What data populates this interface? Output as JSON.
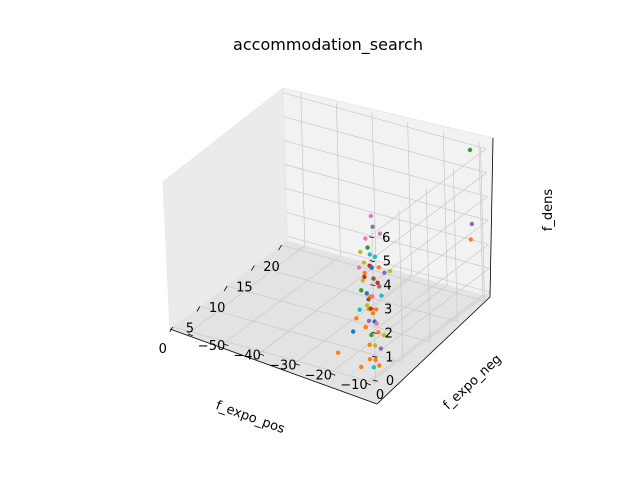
{
  "chart_data": {
    "type": "scatter",
    "title": "accommodation_search",
    "xlabel": "f_expo_pos",
    "ylabel": "f_expo_neg",
    "zlabel": "f_dens",
    "xlim": [
      -0.5,
      21
    ],
    "ylim": [
      -55,
      2
    ],
    "zlim": [
      -0.2,
      6.2
    ],
    "xticks": [
      0,
      5,
      10,
      15,
      20
    ],
    "yticks": [
      -50,
      -40,
      -30,
      -20,
      -10,
      0
    ],
    "zticks": [
      0,
      1,
      2,
      3,
      4,
      5,
      6
    ],
    "grid": true,
    "palette": [
      "#1f77b4",
      "#ff7f0e",
      "#2ca02c",
      "#d62728",
      "#9467bd",
      "#8c564b",
      "#e377c2",
      "#7f7f7f",
      "#bcbd22",
      "#17becf"
    ],
    "points": [
      {
        "x": 20,
        "y": -1,
        "z": 6,
        "color": "#2ca02c"
      },
      {
        "x": 21,
        "y": -3,
        "z": 2,
        "color": "#ff7f0e"
      },
      {
        "x": 20,
        "y": -1,
        "z": 2.9,
        "color": "#9467bd"
      },
      {
        "x": 1,
        "y": -10,
        "z": 0.4,
        "color": "#ff7f0e"
      },
      {
        "x": 0,
        "y": -2,
        "z": 0.3,
        "color": "#ff7f0e"
      },
      {
        "x": 5,
        "y": -6,
        "z": 5.6,
        "color": "#e377c2"
      },
      {
        "x": 0,
        "y": -2,
        "z": 2.7,
        "color": "#17becf"
      },
      {
        "x": 0,
        "y": -3,
        "z": 2.3,
        "color": "#ff7f0e"
      },
      {
        "x": 0,
        "y": -4,
        "z": 1.7,
        "color": "#1f77b4"
      },
      {
        "x": 1,
        "y": -2,
        "z": 4.5,
        "color": "#bcbd22"
      },
      {
        "x": 2,
        "y": -3,
        "z": 5.3,
        "color": "#e377c2"
      },
      {
        "x": 4,
        "y": -4,
        "z": 5.4,
        "color": "#7f7f7f"
      },
      {
        "x": 4,
        "y": -2,
        "z": 5.2,
        "color": "#e377c2"
      },
      {
        "x": 2,
        "y": -2,
        "z": 4.2,
        "color": "#d62728"
      },
      {
        "x": 3,
        "y": -3,
        "z": 3.9,
        "color": "#1f77b4"
      },
      {
        "x": 2,
        "y": -4,
        "z": 3.5,
        "color": "#bcbd22"
      },
      {
        "x": 3,
        "y": -5,
        "z": 3.6,
        "color": "#ff7f0e"
      },
      {
        "x": 2,
        "y": -3,
        "z": 3.0,
        "color": "#1f77b4"
      },
      {
        "x": 3,
        "y": -3,
        "z": 2.7,
        "color": "#e377c2"
      },
      {
        "x": 2,
        "y": -2,
        "z": 2.9,
        "color": "#ff7f0e"
      },
      {
        "x": 1,
        "y": -3,
        "z": 3.3,
        "color": "#2ca02c"
      },
      {
        "x": 2,
        "y": -1,
        "z": 3.7,
        "color": "#8c564b"
      },
      {
        "x": 3,
        "y": -2,
        "z": 4.4,
        "color": "#17becf"
      },
      {
        "x": 4,
        "y": -1,
        "z": 3.6,
        "color": "#9467bd"
      },
      {
        "x": 5,
        "y": -1,
        "z": 3.5,
        "color": "#bcbd22"
      },
      {
        "x": 1,
        "y": -1,
        "z": 2.6,
        "color": "#bcbd22"
      },
      {
        "x": 2,
        "y": -2,
        "z": 2.4,
        "color": "#d62728"
      },
      {
        "x": 3,
        "y": -2,
        "z": 2.2,
        "color": "#ff7f0e"
      },
      {
        "x": 2,
        "y": -1,
        "z": 1.9,
        "color": "#1f77b4"
      },
      {
        "x": 1,
        "y": -2,
        "z": 1.8,
        "color": "#ff7f0e"
      },
      {
        "x": 2,
        "y": -2,
        "z": 1.3,
        "color": "#2ca02c"
      },
      {
        "x": 3,
        "y": -2,
        "z": 1.6,
        "color": "#e377c2"
      },
      {
        "x": 1,
        "y": -1,
        "z": 1.1,
        "color": "#ff7f0e"
      },
      {
        "x": 2,
        "y": -1,
        "z": 0.9,
        "color": "#bcbd22"
      },
      {
        "x": 1,
        "y": -1,
        "z": 0.5,
        "color": "#ff7f0e"
      },
      {
        "x": 2,
        "y": -1,
        "z": 0.3,
        "color": "#ff7f0e"
      },
      {
        "x": 1,
        "y": 0,
        "z": 0.2,
        "color": "#17becf"
      },
      {
        "x": 2,
        "y": 0,
        "z": 0.1,
        "color": "#ff7f0e"
      },
      {
        "x": 3,
        "y": -1,
        "z": 0.6,
        "color": "#9467bd"
      },
      {
        "x": 1,
        "y": -2,
        "z": 3.9,
        "color": "#d62728"
      },
      {
        "x": 3,
        "y": -4,
        "z": 4.7,
        "color": "#2ca02c"
      },
      {
        "x": 1,
        "y": -3,
        "z": 4.9,
        "color": "#bcbd22"
      },
      {
        "x": 4,
        "y": -5,
        "z": 4.2,
        "color": "#17becf"
      },
      {
        "x": 2,
        "y": -5,
        "z": 4.0,
        "color": "#e377c2"
      },
      {
        "x": 3,
        "y": -1,
        "z": 3.2,
        "color": "#7f7f7f"
      },
      {
        "x": 1,
        "y": -1,
        "z": 3.0,
        "color": "#8c564b"
      },
      {
        "x": 4,
        "y": -3,
        "z": 3.1,
        "color": "#d62728"
      },
      {
        "x": 2,
        "y": -3,
        "z": 2.5,
        "color": "#bcbd22"
      },
      {
        "x": 3,
        "y": -3,
        "z": 2.0,
        "color": "#ff7f0e"
      },
      {
        "x": 2,
        "y": 0,
        "z": 1.5,
        "color": "#ff7f0e"
      },
      {
        "x": 3,
        "y": 0,
        "z": 1.2,
        "color": "#bcbd22"
      },
      {
        "x": 1,
        "y": -1,
        "z": 2.1,
        "color": "#9467bd"
      },
      {
        "x": 4,
        "y": -2,
        "z": 2.6,
        "color": "#17becf"
      },
      {
        "x": 3,
        "y": -1,
        "z": 4.0,
        "color": "#ff7f0e"
      }
    ]
  }
}
